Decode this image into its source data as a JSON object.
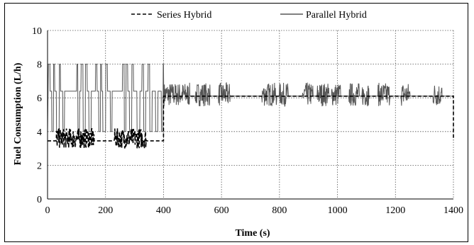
{
  "chart_data": {
    "type": "line",
    "title": "",
    "xlabel": "Time (s)",
    "ylabel": "Fuel Consumption  (L/h)",
    "xlim": [
      0,
      1400
    ],
    "ylim": [
      0,
      10
    ],
    "xticks": [
      0,
      200,
      400,
      600,
      800,
      1000,
      1200,
      1400
    ],
    "yticks": [
      0,
      2,
      4,
      6,
      8,
      10
    ],
    "grid": true,
    "legend_position": "top",
    "series": [
      {
        "name": "Series Hybrid",
        "style": "dashed",
        "color": "#000000",
        "segments": [
          {
            "x_range": [
              0,
              400
            ],
            "base": 3.45,
            "burst_regions": [
              [
                30,
                160
              ],
              [
                230,
                340
              ]
            ],
            "burst_min": 3.0,
            "burst_max": 4.2
          },
          {
            "x_range": [
              400,
              1400
            ],
            "base": 6.1,
            "burst_regions": [],
            "burst_min": 6.1,
            "burst_max": 6.1
          }
        ],
        "end_drop": [
          1400,
          3.5
        ]
      },
      {
        "name": "Parallel Hybrid",
        "style": "solid",
        "color": "#555555",
        "levels": {
          "high": 8.0,
          "mid": 6.4,
          "low": 4.0
        },
        "segments_0_400": "switching between 4.0, 6.4 and 8.0 L/h",
        "burst_regions": [
          [
            400,
            490
          ],
          [
            510,
            560
          ],
          [
            590,
            630
          ],
          [
            740,
            790
          ],
          [
            800,
            830
          ],
          [
            880,
            915
          ],
          [
            930,
            970
          ],
          [
            980,
            1010
          ],
          [
            1040,
            1075
          ],
          [
            1085,
            1110
          ],
          [
            1140,
            1180
          ],
          [
            1220,
            1250
          ],
          [
            1330,
            1360
          ]
        ],
        "burst_min": 5.5,
        "burst_max": 6.9,
        "baseline_after_400": 6.1
      }
    ]
  }
}
